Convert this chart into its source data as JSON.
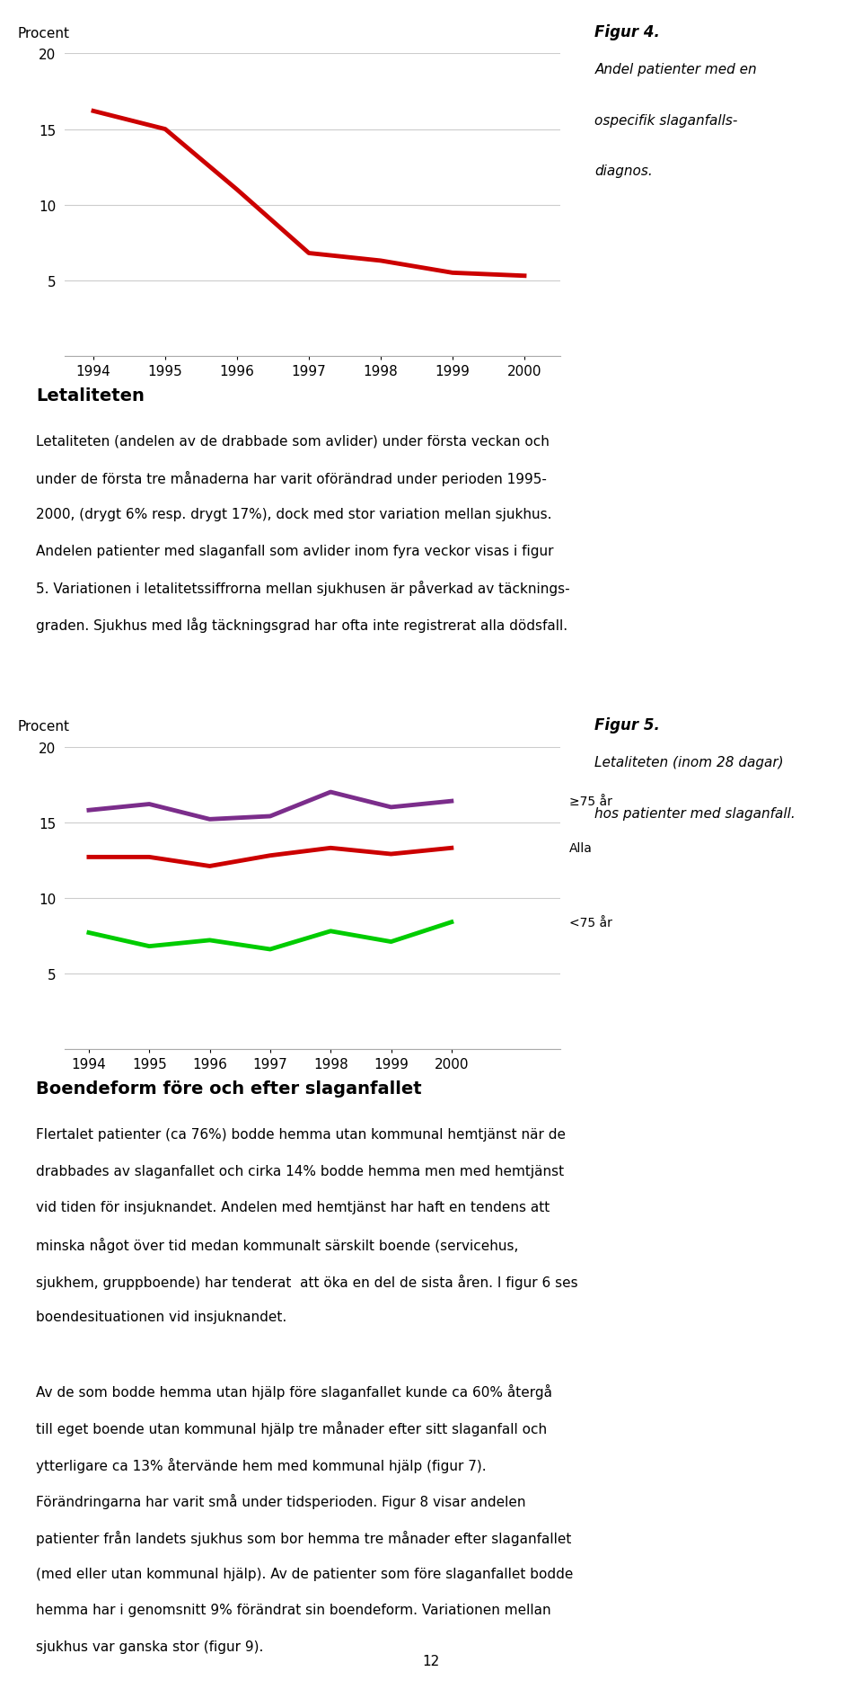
{
  "fig4": {
    "years": [
      1994,
      1995,
      1996,
      1997,
      1998,
      1999,
      2000
    ],
    "values": [
      16.2,
      15.0,
      11.0,
      6.8,
      6.3,
      5.5,
      5.3
    ],
    "color": "#cc0000",
    "ylabel": "Procent",
    "ylim": [
      0,
      20
    ],
    "yticks": [
      0,
      5,
      10,
      15,
      20
    ],
    "fig_label": "Figur 4.",
    "caption_lines": [
      "Andel patienter med en",
      "ospecifik slaganfalls-",
      "diagnos."
    ],
    "linewidth": 3.5
  },
  "fig5": {
    "years": [
      1994,
      1995,
      1996,
      1997,
      1998,
      1999,
      2000
    ],
    "ge75_values": [
      15.8,
      16.2,
      15.2,
      15.4,
      17.0,
      16.0,
      16.4
    ],
    "alla_values": [
      12.7,
      12.7,
      12.1,
      12.8,
      13.3,
      12.9,
      13.3
    ],
    "lt75_values": [
      7.7,
      6.8,
      7.2,
      6.6,
      7.8,
      7.1,
      8.4
    ],
    "ge75_color": "#7B2D8B",
    "alla_color": "#cc0000",
    "lt75_color": "#00cc00",
    "ge75_label": "≥75 år",
    "alla_label": "Alla",
    "lt75_label": "<75 år",
    "ylabel": "Procent",
    "ylim": [
      0,
      20
    ],
    "yticks": [
      0,
      5,
      10,
      15,
      20
    ],
    "fig_label": "Figur 5.",
    "caption_lines": [
      "Letaliteten (inom 28 dagar)",
      "hos patienter med slaganfall."
    ],
    "linewidth": 3.5
  },
  "text_letaliteten_heading": "Letaliteten",
  "text_letaliteten_body": [
    "Letaliteten (andelen av de drabbade som avlider) under första veckan och",
    "under de första tre månaderna har varit oförändrad under perioden 1995-",
    "2000, (drygt 6% resp. drygt 17%), dock med stor variation mellan sjukhus.",
    "Andelen patienter med slaganfall som avlider inom fyra veckor visas i figur",
    "5. Variationen i letalitetssiffrorna mellan sjukhusen är påverkad av täcknings-",
    "graden. Sjukhus med låg täckningsgrad har ofta inte registrerat alla dödsfall."
  ],
  "text_boendeform_heading": "Boendeform före och efter slaganfallet",
  "text_boendeform_body1": [
    "Flertalet patienter (ca 76%) bodde hemma utan kommunal hemtjänst när de",
    "drabbades av slaganfallet och cirka 14% bodde hemma men med hemtjänst",
    "vid tiden för insjuknandet. Andelen med hemtjänst har haft en tendens att",
    "minska något över tid medan kommunalt särskilt boende (servicehus,",
    "sjukhem, gruppboende) har tenderat  att öka en del de sista åren. I figur 6 ses",
    "boendesituationen vid insjuknandet."
  ],
  "text_boendeform_body2": [
    "Av de som bodde hemma utan hjälp före slaganfallet kunde ca 60% återgå",
    "till eget boende utan kommunal hjälp tre månader efter sitt slaganfall och",
    "ytterligare ca 13% återvände hem med kommunal hjälp (figur 7).",
    "Förändringarna har varit små under tidsperioden. Figur 8 visar andelen",
    "patienter från landets sjukhus som bor hemma tre månader efter slaganfallet",
    "(med eller utan kommunal hjälp). Av de patienter som före slaganfallet bodde",
    "hemma har i genomsnitt 9% förändrat sin boendeform. Variationen mellan",
    "sjukhus var ganska stor (figur 9)."
  ],
  "page_number": "12",
  "background_color": "#ffffff",
  "grid_color": "#cccccc",
  "spine_color": "#aaaaaa"
}
